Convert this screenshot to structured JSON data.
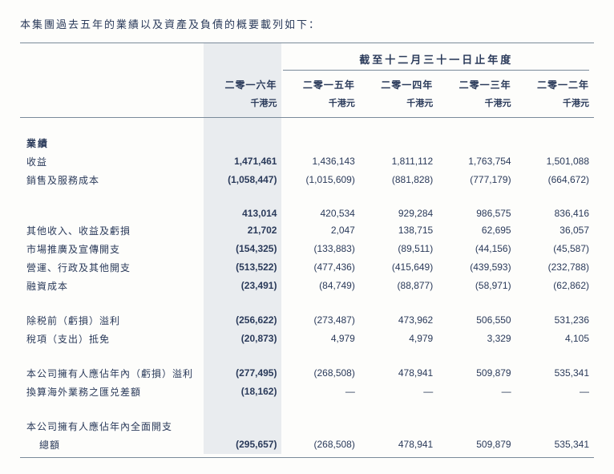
{
  "intro": "本集團過去五年的業績以及資產及負債的概要載列如下：",
  "header": {
    "groupTitle": "截至十二月三十一日止年度",
    "years": [
      "二零一六年",
      "二零一五年",
      "二零一四年",
      "二零一三年",
      "二零一二年"
    ],
    "units": [
      "千港元",
      "千港元",
      "千港元",
      "千港元",
      "千港元"
    ]
  },
  "sections": {
    "results": "業績",
    "revenue": "收益",
    "costOfSales": "銷售及服務成本",
    "otherIncome": "其他收入、收益及虧損",
    "marketing": "市場推廣及宣傳開支",
    "admin": "營運、行政及其他開支",
    "finance": "融資成本",
    "pbt": "除税前（虧損）溢利",
    "tax": "稅項（支出）抵免",
    "attributable": "本公司擁有人應佔年內（虧損）溢利",
    "fx": "換算海外業務之匯兑差額",
    "totalComprehensive1": "本公司擁有人應佔年內全面開支",
    "totalComprehensive2": "總額"
  },
  "dash": "—",
  "rows": {
    "revenue": [
      "1,471,461",
      "1,436,143",
      "1,811,112",
      "1,763,754",
      "1,501,088"
    ],
    "costOfSales": [
      "(1,058,447)",
      "(1,015,609)",
      "(881,828)",
      "(777,179)",
      "(664,672)"
    ],
    "gross": [
      "413,014",
      "420,534",
      "929,284",
      "986,575",
      "836,416"
    ],
    "otherIncome": [
      "21,702",
      "2,047",
      "138,715",
      "62,695",
      "36,057"
    ],
    "marketing": [
      "(154,325)",
      "(133,883)",
      "(89,511)",
      "(44,156)",
      "(45,587)"
    ],
    "admin": [
      "(513,522)",
      "(477,436)",
      "(415,649)",
      "(439,593)",
      "(232,788)"
    ],
    "finance": [
      "(23,491)",
      "(84,749)",
      "(88,877)",
      "(58,971)",
      "(62,862)"
    ],
    "pbt": [
      "(256,622)",
      "(273,487)",
      "473,962",
      "506,550",
      "531,236"
    ],
    "tax": [
      "(20,873)",
      "4,979",
      "4,979",
      "3,329",
      "4,105"
    ],
    "attributable": [
      "(277,495)",
      "(268,508)",
      "478,941",
      "509,879",
      "535,341"
    ],
    "fx": [
      "(18,162)",
      "—",
      "—",
      "—",
      "—"
    ],
    "total": [
      "(295,657)",
      "(268,508)",
      "478,941",
      "509,879",
      "535,341"
    ]
  },
  "style": {
    "highlightBg": "#e9ecef",
    "textColor": "#2a3a5a",
    "ruleColor": "#7a8a9a",
    "pageBg": "#fdfdfb"
  }
}
